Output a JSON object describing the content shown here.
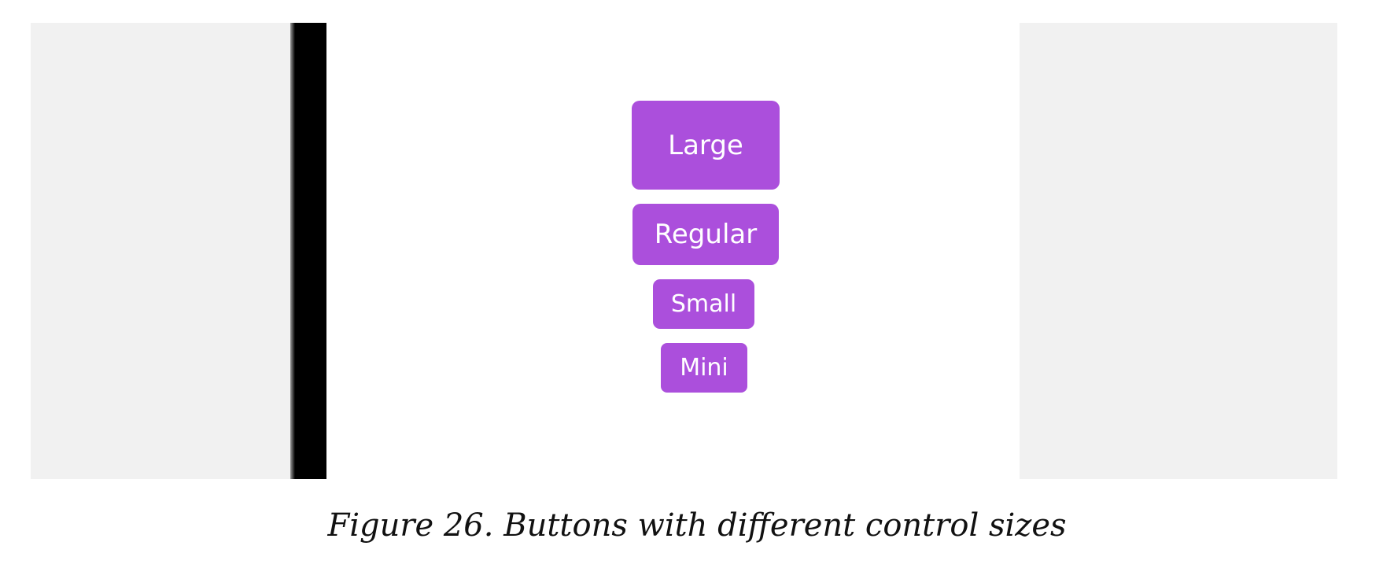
{
  "colors": {
    "button_background": "#ab4fdc",
    "button_text": "#ffffff",
    "panel_background": "#f1f1f1",
    "device_bezel": "#000000",
    "screen_background": "#ffffff"
  },
  "buttons": [
    {
      "label": "Large"
    },
    {
      "label": "Regular"
    },
    {
      "label": "Small"
    },
    {
      "label": "Mini"
    }
  ],
  "caption": "Figure 26. Buttons with different control sizes"
}
